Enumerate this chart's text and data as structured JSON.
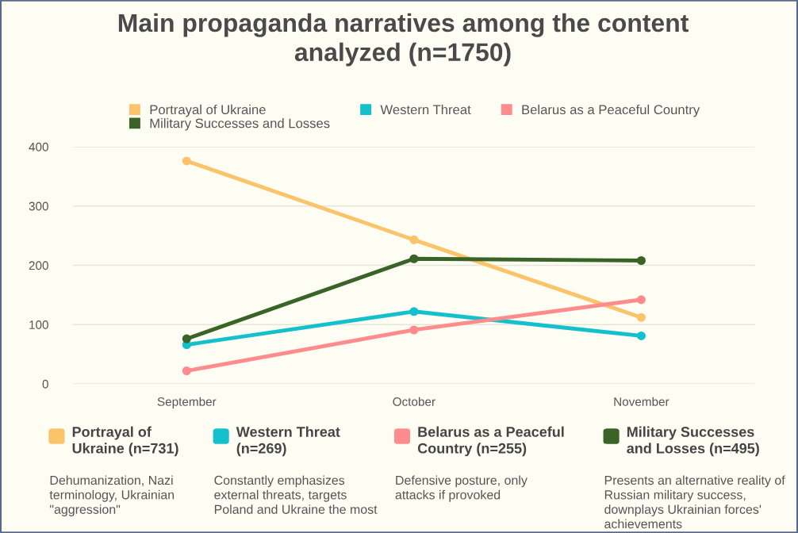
{
  "chart_data": {
    "type": "line",
    "title": "Main propaganda narratives among the content\nanalyzed (n=1750)",
    "categories": [
      "September",
      "October",
      "November"
    ],
    "series": [
      {
        "name": "Portrayal of Ukraine",
        "color": "#fcc46a",
        "values": [
          376,
          243,
          112
        ]
      },
      {
        "name": "Western Threat",
        "color": "#14c0cc",
        "values": [
          66,
          122,
          81
        ]
      },
      {
        "name": "Belarus as a Peaceful Country",
        "color": "#ff8c8c",
        "values": [
          22,
          91,
          142
        ]
      },
      {
        "name": "Military Successes and Losses",
        "color": "#3a6327",
        "values": [
          76,
          211,
          208
        ]
      }
    ],
    "ylim": [
      0,
      400
    ],
    "yticks": [
      0,
      100,
      200,
      300,
      400
    ],
    "grid": "y",
    "legend": "top",
    "marker": "circle",
    "line_style": "solid",
    "annotations": [
      "Portrayal of\nUkraine (n=731)",
      "Dehumanization, Nazi\nterminology, Ukrainian\n\"aggression\"",
      "Western Threat\n(n=269)",
      "Constantly emphasizes\nexternal threats, targets\nPoland and Ukraine the most",
      "Belarus as a Peaceful\nCountry (n=255)",
      "Defensive posture, only\nattacks if provoked",
      "Military Successes\nand Losses (n=495)",
      "Presents an alternative reality of\nRussian military success,\ndownplays Ukrainian forces'\nachievements"
    ]
  }
}
